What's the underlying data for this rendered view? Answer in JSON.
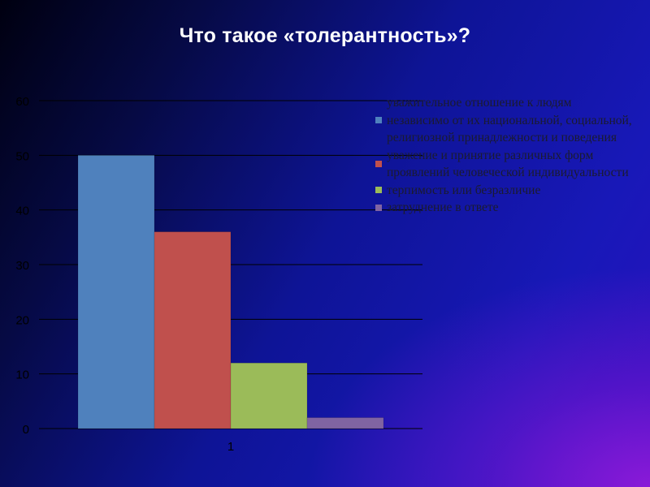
{
  "title": "Что такое «толерантность»?",
  "chart_data": {
    "type": "bar",
    "categories": [
      "1"
    ],
    "ylim": [
      0,
      60
    ],
    "yticks": [
      0,
      10,
      20,
      30,
      40,
      50,
      60
    ],
    "grid": true,
    "legend_position": "right",
    "series": [
      {
        "name": "уважительное отношение к людям независимо от их национальной, социальной, религиозной принадлежности и поведения",
        "values": [
          50
        ],
        "color": "#4f81bd"
      },
      {
        "name": "уважение и принятие различных форм проявлений человеческой индивидуальности",
        "values": [
          36
        ],
        "color": "#c0504d"
      },
      {
        "name": "терпимость или безразличие",
        "values": [
          12
        ],
        "color": "#9bbb59"
      },
      {
        "name": "затруднение в ответе",
        "values": [
          2
        ],
        "color": "#8064a2"
      }
    ]
  }
}
